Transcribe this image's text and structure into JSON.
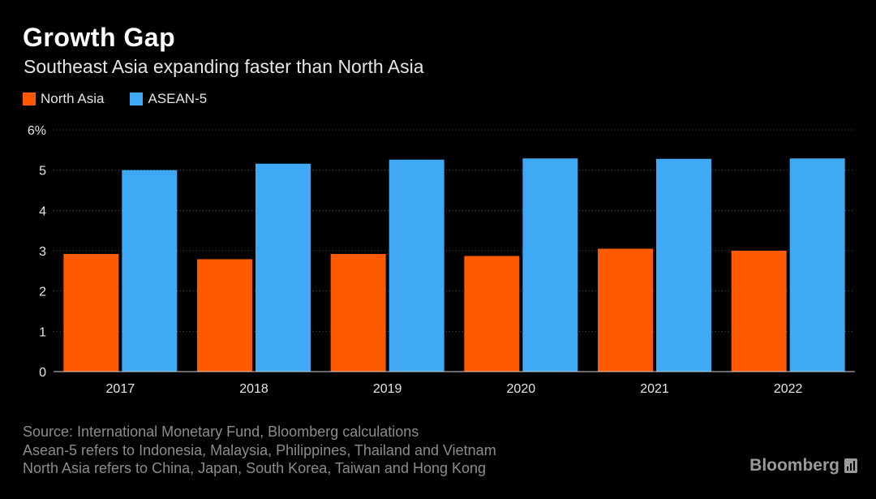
{
  "header": {
    "title": "Growth Gap",
    "subtitle": "Southeast Asia expanding faster than North Asia"
  },
  "legend": [
    {
      "label": "North Asia",
      "color": "#ff5a00"
    },
    {
      "label": "ASEAN-5",
      "color": "#3fa9f5"
    }
  ],
  "chart_data": {
    "type": "bar",
    "title": "Growth Gap",
    "subtitle": "Southeast Asia expanding faster than North Asia",
    "categories": [
      "2017",
      "2018",
      "2019",
      "2020",
      "2021",
      "2022"
    ],
    "series": [
      {
        "name": "North Asia",
        "color": "#ff5a00",
        "values": [
          2.92,
          2.79,
          2.92,
          2.87,
          3.05,
          3.0
        ]
      },
      {
        "name": "ASEAN-5",
        "color": "#3fa9f5",
        "values": [
          5.0,
          5.16,
          5.26,
          5.29,
          5.28,
          5.29
        ]
      }
    ],
    "ylim": [
      0,
      6
    ],
    "yticks": [
      "0",
      "1",
      "2",
      "3",
      "4",
      "5",
      "6%"
    ],
    "xlabel": "",
    "ylabel": "",
    "grid": true,
    "legend_position": "top-left"
  },
  "footer": {
    "source": "Source: International Monetary Fund, Bloomberg calculations",
    "notes": [
      "Asean-5 refers to Indonesia, Malaysia, Philippines, Thailand and Vietnam",
      "North Asia refers to China, Japan, South Korea, Taiwan and Hong Kong"
    ],
    "brand": "Bloomberg"
  }
}
